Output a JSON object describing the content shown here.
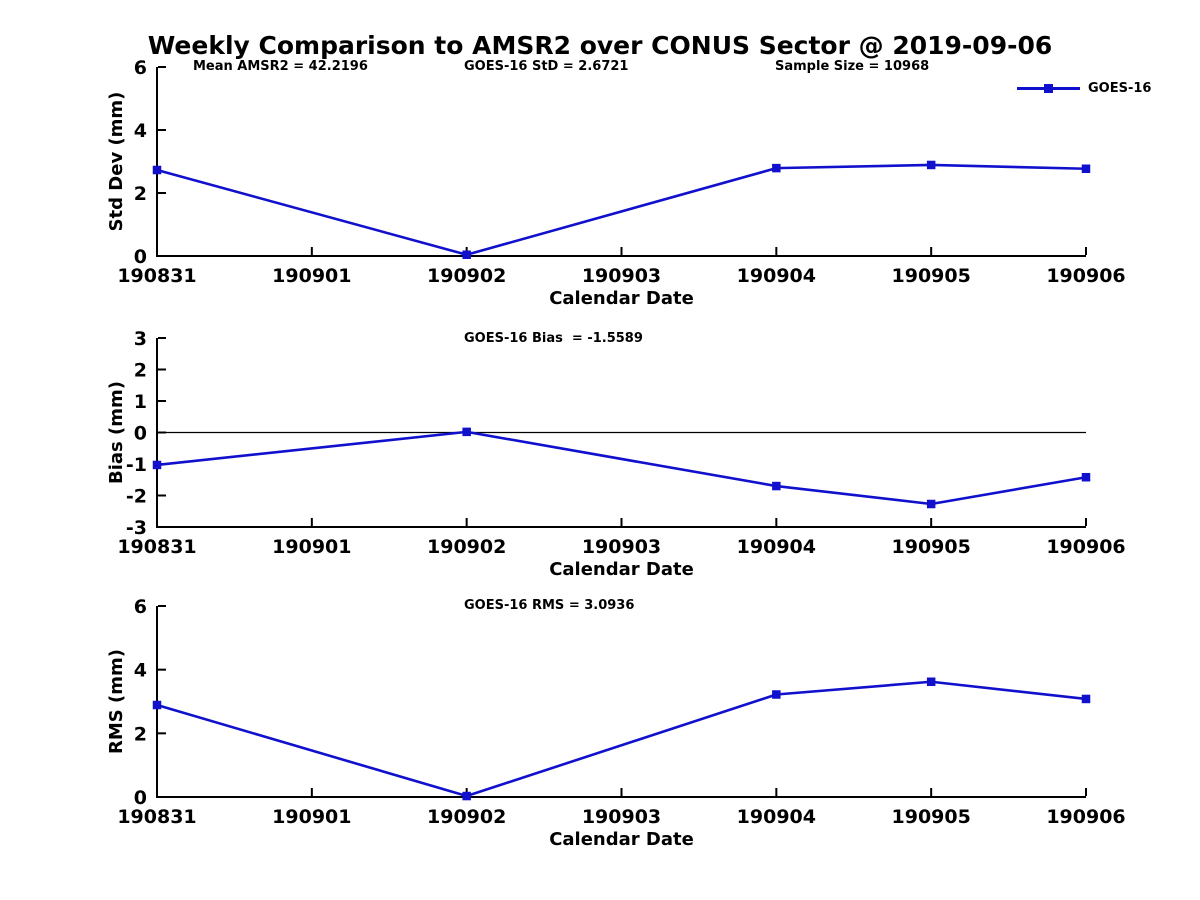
{
  "header": {
    "title": "Weekly Comparison to AMSR2 over CONUS Sector @ 2019-09-06"
  },
  "stats_row": [
    {
      "label": "Mean AMSR2 = 42.2196"
    },
    {
      "label": "GOES-16 StD = 2.6721"
    },
    {
      "label": "Sample Size = 10968"
    }
  ],
  "legend": {
    "label": "GOES-16",
    "position": "top-right"
  },
  "colors": {
    "series": "#1111cd",
    "axis": "#000000",
    "text": "#000000",
    "zero_line": "#000000",
    "background": "#ffffff"
  },
  "chart_data": [
    {
      "type": "line",
      "ylabel": "Std Dev (mm)",
      "xlabel": "Calendar Date",
      "ylim": [
        0,
        6
      ],
      "yticks": [
        0,
        2,
        4,
        6
      ],
      "grid": false,
      "x_categories": [
        "190831",
        "190901",
        "190902",
        "190903",
        "190904",
        "190905",
        "190906"
      ],
      "annotation": "",
      "series": [
        {
          "name": "GOES-16",
          "x": [
            "190831",
            "190902",
            "190904",
            "190905",
            "190906"
          ],
          "y": [
            2.73,
            0.04,
            2.79,
            2.89,
            2.77
          ]
        }
      ]
    },
    {
      "type": "line",
      "ylabel": "Bias (mm)",
      "xlabel": "Calendar Date",
      "ylim": [
        -3,
        3
      ],
      "yticks": [
        -3,
        -2,
        -1,
        0,
        1,
        2,
        3
      ],
      "grid": false,
      "zero_line": true,
      "x_categories": [
        "190831",
        "190901",
        "190902",
        "190903",
        "190904",
        "190905",
        "190906"
      ],
      "annotation": "GOES-16 Bias  = -1.5589",
      "series": [
        {
          "name": "GOES-16",
          "x": [
            "190831",
            "190902",
            "190904",
            "190905",
            "190906"
          ],
          "y": [
            -1.03,
            0.02,
            -1.7,
            -2.27,
            -1.42
          ]
        }
      ]
    },
    {
      "type": "line",
      "ylabel": "RMS (mm)",
      "xlabel": "Calendar Date",
      "ylim": [
        0,
        6
      ],
      "yticks": [
        0,
        2,
        4,
        6
      ],
      "grid": false,
      "x_categories": [
        "190831",
        "190901",
        "190902",
        "190903",
        "190904",
        "190905",
        "190906"
      ],
      "annotation": "GOES-16 RMS = 3.0936",
      "series": [
        {
          "name": "GOES-16",
          "x": [
            "190831",
            "190902",
            "190904",
            "190905",
            "190906"
          ],
          "y": [
            2.89,
            0.03,
            3.22,
            3.62,
            3.08
          ]
        }
      ]
    }
  ]
}
